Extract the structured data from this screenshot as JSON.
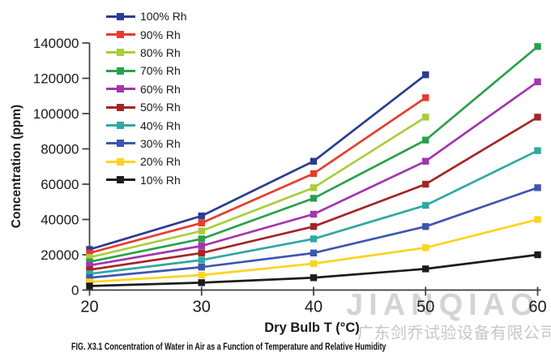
{
  "figure": {
    "caption": "FIG. X3.1 Concentration of Water in Air as a Function of Temperature and Relative Humidity"
  },
  "watermark": {
    "brand": "JIANQIAO",
    "company": "广东剑乔试验设备有限公司",
    "brand_color": "#d4d4d4",
    "company_color": "#c7c7c7"
  },
  "chart_data": {
    "type": "line",
    "title": "",
    "xlabel": "Dry Bulb T (°C)",
    "ylabel": "Concentration (ppm)",
    "xlim": [
      20,
      60
    ],
    "ylim": [
      0,
      140000
    ],
    "x_ticks": [
      20,
      30,
      40,
      50,
      60
    ],
    "x_tick_labels": [
      "20",
      "30",
      "40",
      "50",
      "60"
    ],
    "y_ticks": [
      0,
      20000,
      40000,
      60000,
      80000,
      100000,
      120000,
      140000
    ],
    "y_tick_labels": [
      "0",
      "20000",
      "40000",
      "60000",
      "80000",
      "100000",
      "120000",
      "140000"
    ],
    "grid": false,
    "legend_position": "top-left",
    "marker": "square",
    "axis_color": "#3c3c3c",
    "text_color": "#1a1a1a",
    "series": [
      {
        "name": "100% Rh",
        "color": "#2b3c92",
        "x": [
          20,
          30,
          40,
          50
        ],
        "values": [
          23000,
          42000,
          73000,
          122000
        ]
      },
      {
        "name": "90% Rh",
        "color": "#e73c2e",
        "x": [
          20,
          30,
          40,
          50
        ],
        "values": [
          21000,
          38000,
          66000,
          109000
        ]
      },
      {
        "name": "80% Rh",
        "color": "#a8ce38",
        "x": [
          20,
          30,
          40,
          50
        ],
        "values": [
          18500,
          33500,
          58000,
          98000
        ]
      },
      {
        "name": "70% Rh",
        "color": "#2aa04e",
        "x": [
          20,
          30,
          40,
          50,
          60
        ],
        "values": [
          16000,
          29000,
          52000,
          85000,
          138000
        ]
      },
      {
        "name": "60% Rh",
        "color": "#a335ad",
        "x": [
          20,
          30,
          40,
          50,
          60
        ],
        "values": [
          14000,
          25000,
          43000,
          73000,
          118000
        ]
      },
      {
        "name": "50% Rh",
        "color": "#a52527",
        "x": [
          20,
          30,
          40,
          50,
          60
        ],
        "values": [
          11500,
          21000,
          36000,
          60000,
          98000
        ]
      },
      {
        "name": "40% Rh",
        "color": "#30a8a3",
        "x": [
          20,
          30,
          40,
          50,
          60
        ],
        "values": [
          9200,
          17000,
          29000,
          48000,
          79000
        ]
      },
      {
        "name": "30% Rh",
        "color": "#3d56b2",
        "x": [
          20,
          30,
          40,
          50,
          60
        ],
        "values": [
          7000,
          13000,
          21000,
          36000,
          58000
        ]
      },
      {
        "name": "20% Rh",
        "color": "#fdd323",
        "x": [
          20,
          30,
          40,
          50,
          60
        ],
        "values": [
          4600,
          8500,
          15000,
          24000,
          40000
        ]
      },
      {
        "name": "10% Rh",
        "color": "#1c1c1c",
        "x": [
          20,
          30,
          40,
          50,
          60
        ],
        "values": [
          2300,
          4200,
          7000,
          12000,
          20000
        ]
      }
    ]
  }
}
